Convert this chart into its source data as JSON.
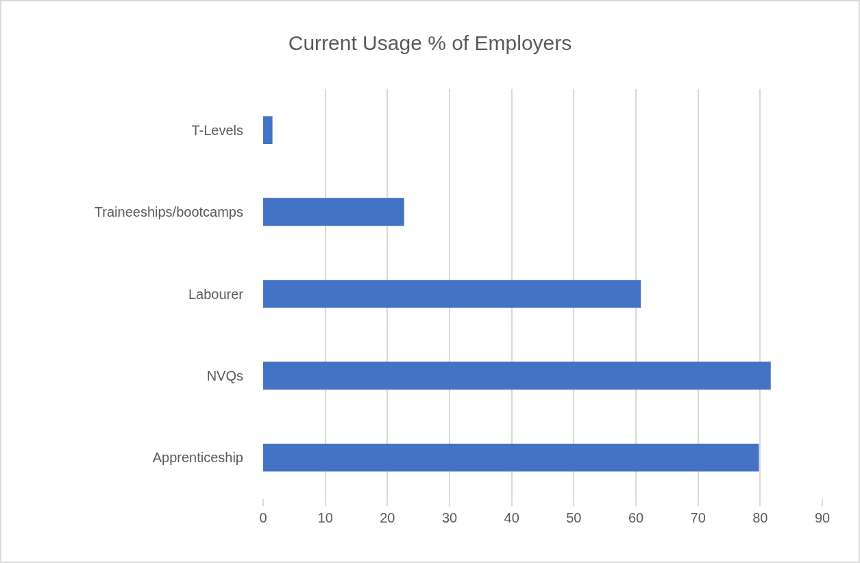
{
  "chart_data": {
    "type": "bar",
    "orientation": "horizontal",
    "title": "Current Usage % of Employers",
    "categories": [
      "T-Levels",
      "Traineeships/bootcamps",
      "Labourer",
      "NVQs",
      "Apprenticeship"
    ],
    "values": [
      1.5,
      22.7,
      60.8,
      81.7,
      79.8
    ],
    "color": "#4472c4",
    "xlim": [
      0,
      90
    ],
    "xticks": [
      0,
      10,
      20,
      30,
      40,
      50,
      60,
      70,
      80,
      90
    ],
    "grid": "x"
  }
}
